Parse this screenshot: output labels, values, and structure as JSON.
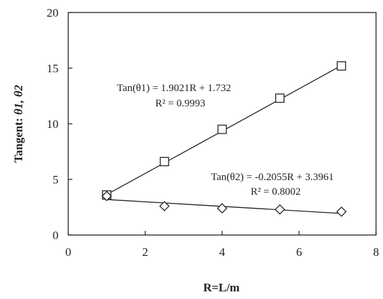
{
  "chart_data": {
    "type": "scatter",
    "xlabel": "R=L/m",
    "ylabel": "Tangent: ",
    "ylabel_symbols": "θ1, θ2",
    "xlim": [
      0,
      8
    ],
    "ylim": [
      0,
      20
    ],
    "x_ticks": [
      "0",
      "2",
      "4",
      "6",
      "8"
    ],
    "y_ticks": [
      "0",
      "5",
      "10",
      "15",
      "20"
    ],
    "grid": false,
    "series": [
      {
        "marker": "square",
        "x": [
          1.0,
          2.5,
          4.0,
          5.5,
          7.1
        ],
        "y": [
          3.6,
          6.6,
          9.5,
          12.3,
          15.2
        ],
        "fit": {
          "slope": 1.9021,
          "intercept": 1.732
        },
        "equation": "Tan(θ1) = 1.9021R + 1.732",
        "r2": "R² = 0.9993"
      },
      {
        "marker": "diamond",
        "x": [
          1.0,
          2.5,
          4.0,
          5.5,
          7.1
        ],
        "y": [
          3.5,
          2.6,
          2.4,
          2.3,
          2.1
        ],
        "fit": {
          "slope": -0.2055,
          "intercept": 3.3961
        },
        "equation": "Tan(θ2) = -0.2055R + 3.3961",
        "r2": "R² = 0.8002"
      }
    ]
  }
}
